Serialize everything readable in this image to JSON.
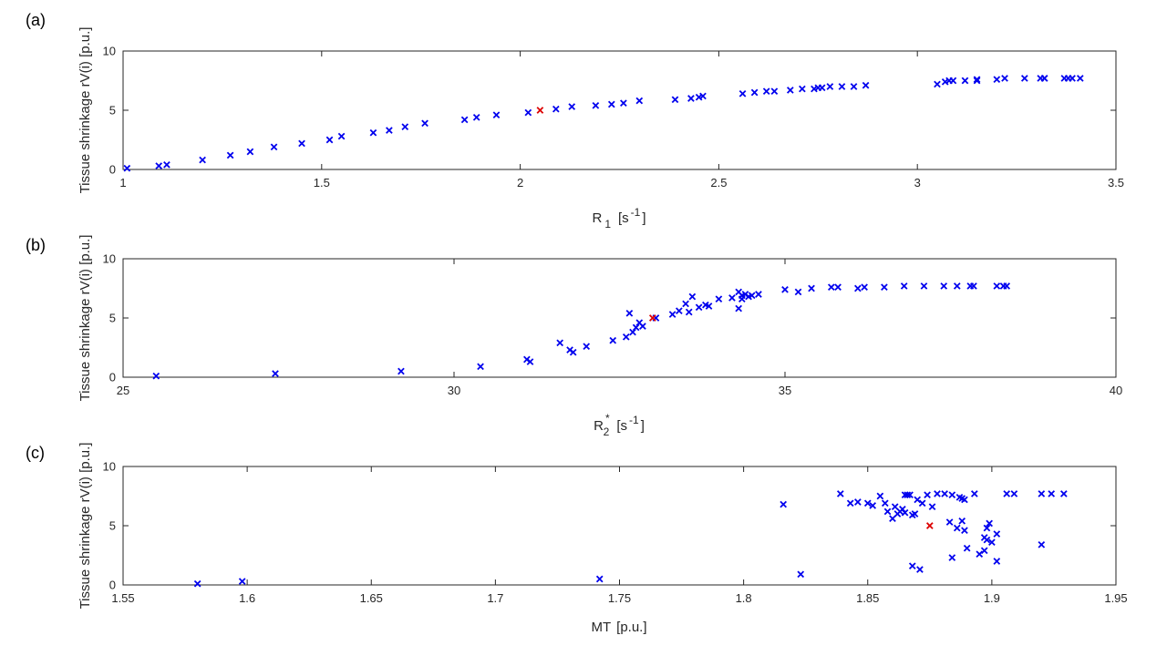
{
  "colors": {
    "series": "#0000ee",
    "highlight": "#dd0000",
    "axis": "#262626"
  },
  "chart_data": [
    {
      "type": "scatter",
      "panel_label": "(a)",
      "xlabel_main": "R",
      "xlabel_sub": "1",
      "xlabel_unit": "[s",
      "xlabel_sup": "-1",
      "xlabel_close": "]",
      "ylabel": "Tissue shrinkage rV(i) [p.u.]",
      "xlim": [
        1,
        3.5
      ],
      "ylim": [
        0,
        10
      ],
      "xticks": [
        1,
        1.5,
        2,
        2.5,
        3,
        3.5
      ],
      "xtick_labels": [
        "1",
        "1.5",
        "2",
        "2.5",
        "3",
        "3.5"
      ],
      "yticks": [
        0,
        5,
        10
      ],
      "ytick_labels": [
        "0",
        "5",
        "10"
      ],
      "highlight": {
        "x": 2.05,
        "y": 5.0
      },
      "x": [
        1.01,
        1.09,
        1.11,
        1.2,
        1.27,
        1.32,
        1.38,
        1.45,
        1.52,
        1.55,
        1.63,
        1.67,
        1.71,
        1.76,
        1.86,
        1.89,
        1.94,
        2.02,
        2.09,
        2.13,
        2.19,
        2.23,
        2.26,
        2.3,
        2.39,
        2.43,
        2.45,
        2.46,
        2.56,
        2.59,
        2.62,
        2.64,
        2.68,
        2.71,
        2.74,
        2.75,
        2.76,
        2.78,
        2.81,
        2.84,
        2.87,
        3.05,
        3.07,
        3.08,
        3.09,
        3.12,
        3.15,
        3.15,
        3.2,
        3.22,
        3.27,
        3.31,
        3.32,
        3.32,
        3.37,
        3.38,
        3.39,
        3.41
      ],
      "y": [
        0.1,
        0.3,
        0.4,
        0.8,
        1.2,
        1.5,
        1.9,
        2.2,
        2.5,
        2.8,
        3.1,
        3.3,
        3.6,
        3.9,
        4.2,
        4.4,
        4.6,
        4.8,
        5.1,
        5.3,
        5.4,
        5.5,
        5.6,
        5.8,
        5.9,
        6.0,
        6.1,
        6.2,
        6.4,
        6.5,
        6.6,
        6.6,
        6.7,
        6.8,
        6.8,
        6.9,
        6.9,
        7.0,
        7.0,
        7.0,
        7.1,
        7.2,
        7.4,
        7.5,
        7.5,
        7.5,
        7.5,
        7.6,
        7.6,
        7.7,
        7.7,
        7.7,
        7.7,
        7.7,
        7.7,
        7.7,
        7.7,
        7.7
      ]
    },
    {
      "type": "scatter",
      "panel_label": "(b)",
      "xlabel_main": "R",
      "xlabel_sub": "2",
      "xlabel_sup_star": "*",
      "xlabel_unit": "[s",
      "xlabel_sup": "-1",
      "xlabel_close": "]",
      "ylabel": "Tissue shrinkage rV(i) [p.u.]",
      "xlim": [
        25,
        40
      ],
      "ylim": [
        0,
        10
      ],
      "xticks": [
        25,
        30,
        35,
        40
      ],
      "xtick_labels": [
        "25",
        "30",
        "35",
        "40"
      ],
      "yticks": [
        0,
        5,
        10
      ],
      "ytick_labels": [
        "0",
        "5",
        "10"
      ],
      "highlight": {
        "x": 33.0,
        "y": 5.0
      },
      "x": [
        25.5,
        27.3,
        29.2,
        30.4,
        31.1,
        31.15,
        31.6,
        31.75,
        31.8,
        32.0,
        32.4,
        32.6,
        32.65,
        32.7,
        32.75,
        32.8,
        32.85,
        33.05,
        33.3,
        33.4,
        33.5,
        33.55,
        33.6,
        33.7,
        33.8,
        33.85,
        34.0,
        34.3,
        34.35,
        34.4,
        34.45,
        34.5,
        34.6,
        34.3,
        34.2,
        34.35,
        35.0,
        35.2,
        35.4,
        35.7,
        35.8,
        36.1,
        36.2,
        36.5,
        36.8,
        37.1,
        37.4,
        37.6,
        37.8,
        37.85,
        38.2,
        38.3,
        38.35
      ],
      "y": [
        0.1,
        0.3,
        0.5,
        0.9,
        1.5,
        1.3,
        2.9,
        2.3,
        2.1,
        2.6,
        3.1,
        3.4,
        5.4,
        3.8,
        4.2,
        4.6,
        4.3,
        5.0,
        5.3,
        5.6,
        6.2,
        5.5,
        6.8,
        5.9,
        6.1,
        6.0,
        6.6,
        5.8,
        6.6,
        7.0,
        6.8,
        6.9,
        7.0,
        7.2,
        6.7,
        6.9,
        7.4,
        7.2,
        7.5,
        7.6,
        7.6,
        7.5,
        7.6,
        7.6,
        7.7,
        7.7,
        7.7,
        7.7,
        7.7,
        7.7,
        7.7,
        7.7,
        7.7
      ]
    },
    {
      "type": "scatter",
      "panel_label": "(c)",
      "xlabel_main": "MT",
      "xlabel_unit": "[p.u.]",
      "ylabel": "Tissue shrinkage rV(i) [p.u.]",
      "xlim": [
        1.55,
        1.95
      ],
      "ylim": [
        0,
        10
      ],
      "xticks": [
        1.55,
        1.6,
        1.65,
        1.7,
        1.75,
        1.8,
        1.85,
        1.9,
        1.95
      ],
      "xtick_labels": [
        "1.55",
        "1.6",
        "1.65",
        "1.7",
        "1.75",
        "1.8",
        "1.85",
        "1.9",
        "1.95"
      ],
      "yticks": [
        0,
        5,
        10
      ],
      "ytick_labels": [
        "0",
        "5",
        "10"
      ],
      "highlight": {
        "x": 1.875,
        "y": 5.0
      },
      "x": [
        1.58,
        1.598,
        1.742,
        1.816,
        1.823,
        1.839,
        1.843,
        1.846,
        1.85,
        1.852,
        1.855,
        1.858,
        1.86,
        1.862,
        1.864,
        1.865,
        1.866,
        1.868,
        1.869,
        1.87,
        1.872,
        1.874,
        1.876,
        1.878,
        1.881,
        1.883,
        1.884,
        1.886,
        1.888,
        1.889,
        1.89,
        1.893,
        1.895,
        1.897,
        1.898,
        1.9,
        1.902,
        1.906,
        1.909,
        1.92,
        1.924,
        1.929,
        1.868,
        1.871,
        1.884,
        1.887,
        1.889,
        1.897,
        1.898,
        1.899,
        1.902,
        1.92,
        1.857,
        1.861,
        1.863,
        1.865,
        1.867,
        1.888
      ],
      "y": [
        0.1,
        0.3,
        0.5,
        6.8,
        0.9,
        7.7,
        6.9,
        7.0,
        6.9,
        6.7,
        7.5,
        6.2,
        5.6,
        6.0,
        6.4,
        6.1,
        7.6,
        5.9,
        6.0,
        7.2,
        6.9,
        7.6,
        6.6,
        7.7,
        7.7,
        5.3,
        7.6,
        4.8,
        5.4,
        4.6,
        3.1,
        7.7,
        2.6,
        4.0,
        4.8,
        3.6,
        4.3,
        7.7,
        7.7,
        7.7,
        7.7,
        7.7,
        1.6,
        1.3,
        2.3,
        7.4,
        7.2,
        2.9,
        3.8,
        5.2,
        2.0,
        3.4,
        6.9,
        6.6,
        6.2,
        7.6,
        7.6,
        7.3
      ]
    }
  ]
}
